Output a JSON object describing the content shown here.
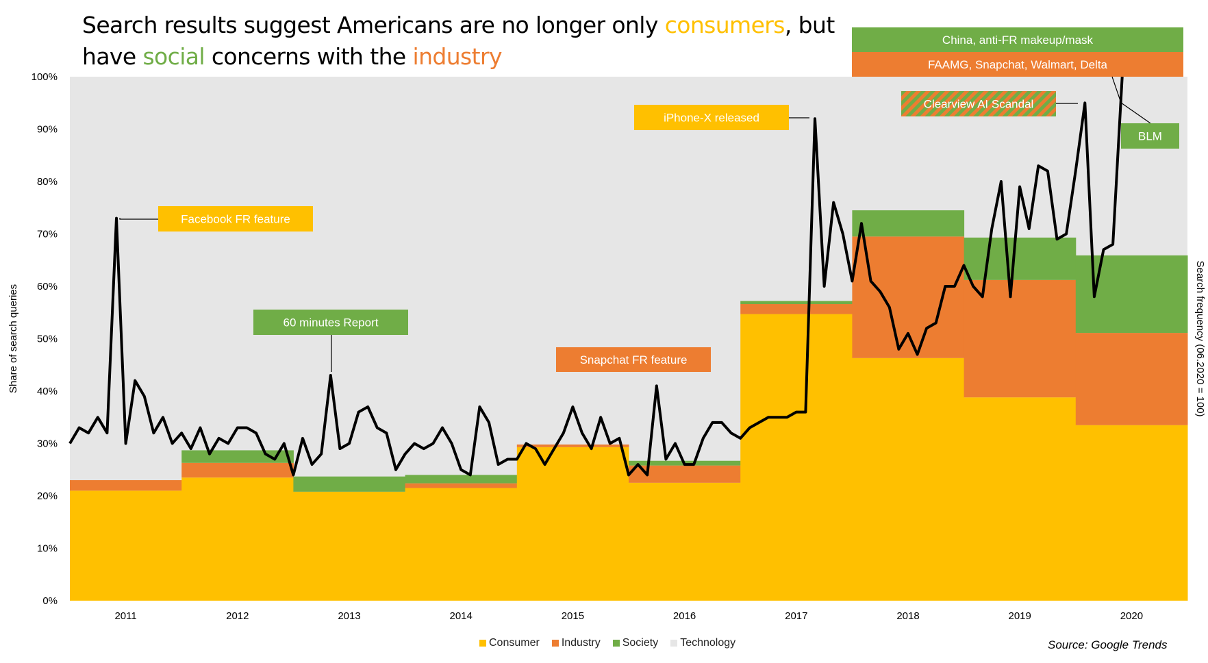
{
  "title": {
    "p1": "Search results",
    "p2": " suggest Americans are no longer only ",
    "p3": "consumers",
    "p4": ", but",
    "p5": "have ",
    "p6": "social",
    "p7": " concerns with the ",
    "p8": "industry"
  },
  "colors": {
    "consumer": "#FFC000",
    "industry": "#ED7D31",
    "society": "#70AD47",
    "technology": "#E6E6E6",
    "line": "#000000"
  },
  "source": "Source: Google Trends",
  "chart_data": {
    "type": "area",
    "ylabel": "Share of search queries",
    "y2label": "Search frequency (06.2020 = 100)",
    "ylim": [
      0,
      100
    ],
    "y_ticks": [
      "0%",
      "10%",
      "20%",
      "30%",
      "40%",
      "50%",
      "60%",
      "70%",
      "80%",
      "90%",
      "100%"
    ],
    "categories": [
      "2011",
      "2012",
      "2013",
      "2014",
      "2015",
      "2016",
      "2017",
      "2018",
      "2019",
      "2020"
    ],
    "stacked_series": [
      {
        "name": "Consumer",
        "values": [
          21,
          23.5,
          20.8,
          21.5,
          29.3,
          22.5,
          54.7,
          46.3,
          38.8,
          33.5
        ]
      },
      {
        "name": "Industry",
        "values": [
          2,
          2.8,
          0,
          0.9,
          0.5,
          3.3,
          1.9,
          23.2,
          22.4,
          17.6
        ]
      },
      {
        "name": "Society",
        "values": [
          0,
          2.4,
          2.9,
          1.6,
          0,
          0.9,
          0.6,
          5,
          8.1,
          14.8
        ]
      },
      {
        "name": "Technology",
        "values": [
          77,
          71.3,
          76.3,
          76,
          70.2,
          73.3,
          42.8,
          25.5,
          30.7,
          34.1
        ]
      }
    ],
    "search_frequency": {
      "name": "Search frequency",
      "x_start": 2010.5,
      "x_step": 0.08333,
      "values": [
        30,
        33,
        32,
        35,
        32,
        73,
        30,
        42,
        39,
        32,
        35,
        30,
        32,
        29,
        33,
        28,
        31,
        30,
        33,
        33,
        32,
        28,
        27,
        30,
        24,
        31,
        26,
        28,
        43,
        29,
        30,
        36,
        37,
        33,
        32,
        25,
        28,
        30,
        29,
        30,
        33,
        30,
        25,
        24,
        37,
        34,
        26,
        27,
        27,
        30,
        29,
        26,
        29,
        32,
        37,
        32,
        29,
        35,
        30,
        31,
        24,
        26,
        24,
        41,
        27,
        30,
        26,
        26,
        31,
        34,
        34,
        32,
        31,
        33,
        34,
        35,
        35,
        35,
        36,
        36,
        92,
        60,
        76,
        70,
        61,
        72,
        61,
        59,
        56,
        48,
        51,
        47,
        52,
        53,
        60,
        60,
        64,
        60,
        58,
        71,
        80,
        58,
        79,
        71,
        83,
        82,
        69,
        70,
        82,
        95,
        58,
        67,
        68,
        100
      ]
    },
    "annotations": [
      {
        "text": "Facebook FR feature",
        "color": "#FFC000"
      },
      {
        "text": "60 minutes Report",
        "color": "#70AD47"
      },
      {
        "text": "Snapchat FR feature",
        "color": "#ED7D31"
      },
      {
        "text": "iPhone-X released",
        "color": "#FFC000"
      },
      {
        "text": "Clearview AI Scandal",
        "color": "striped"
      },
      {
        "text": "China, anti-FR makeup/mask",
        "color": "#70AD47"
      },
      {
        "text": "FAAMG, Snapchat, Walmart, Delta",
        "color": "#ED7D31"
      },
      {
        "text": "BLM",
        "color": "#70AD47"
      }
    ],
    "legend": [
      "Consumer",
      "Industry",
      "Society",
      "Technology"
    ],
    "legend_position": "bottom",
    "grid": false
  }
}
